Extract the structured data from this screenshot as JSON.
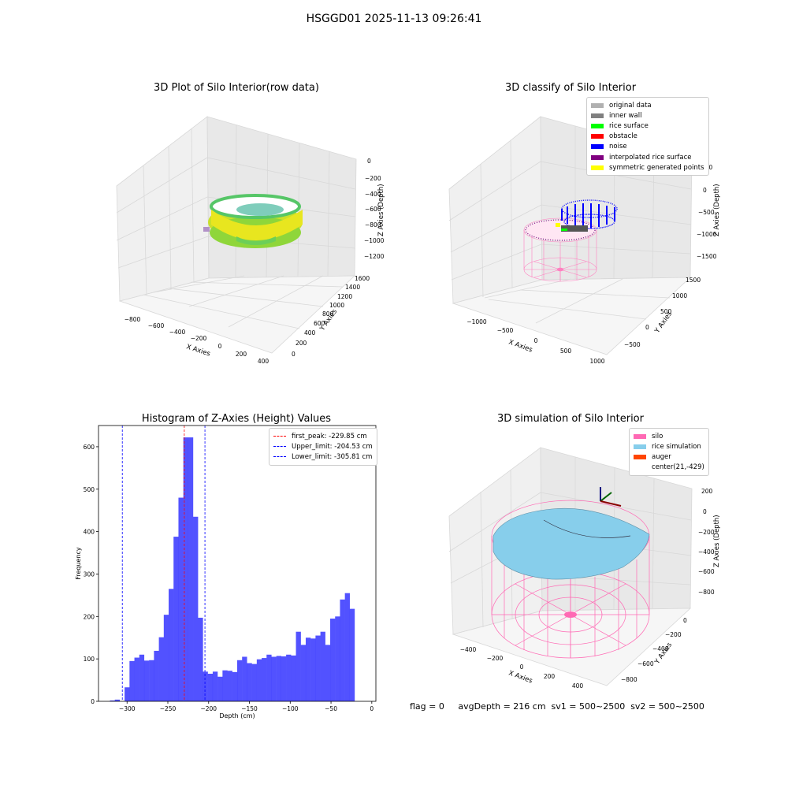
{
  "suptitle": "HSGGD01 2025-11-13 09:26:41",
  "status_text": "flag = 0     avgDepth = 216 cm  sv1 = 500~2500  sv2 = 500~2500",
  "chart_data": [
    {
      "type": "scatter",
      "title": "3D Plot of Silo Interior(row data)",
      "xlabel": "X Axies",
      "ylabel": "Y Axies",
      "zlabel": "Z Axies (Depth)",
      "xticks": [
        "−800",
        "−600",
        "−400",
        "−200",
        "0",
        "200",
        "400"
      ],
      "yticks": [
        "0",
        "200",
        "400",
        "600",
        "800",
        "1000",
        "1200",
        "1400",
        "1600"
      ],
      "zticks": [
        "0",
        "−200",
        "−400",
        "−600",
        "−800",
        "−1000",
        "−1200"
      ],
      "colormap": [
        "#b5de2b",
        "#f3e51e",
        "#35b779",
        "#26828e"
      ]
    },
    {
      "type": "scatter",
      "title": "3D classify of Silo Interior",
      "xlabel": "X Axies",
      "ylabel": "Y Axies",
      "zlabel": "Z Axies (Depth)",
      "xticks": [
        "−1000",
        "−500",
        "0",
        "500",
        "1000"
      ],
      "yticks": [
        "−500",
        "0",
        "500",
        "1000",
        "1500"
      ],
      "zticks": [
        "500",
        "0",
        "−500",
        "−1000",
        "−1500"
      ],
      "legend": [
        {
          "label": "original data",
          "color": "#b0b0b0"
        },
        {
          "label": "inner wall",
          "color": "#808080"
        },
        {
          "label": "rice surface",
          "color": "#00ff00"
        },
        {
          "label": "obstacle",
          "color": "#ff0000"
        },
        {
          "label": "noise",
          "color": "#0000ff"
        },
        {
          "label": "interpolated rice surface",
          "color": "#800080"
        },
        {
          "label": "symmetric generated points",
          "color": "#ffff00"
        }
      ]
    },
    {
      "type": "bar",
      "title": "Histogram of Z-Axies (Height) Values",
      "xlabel": "Depth (cm)",
      "ylabel": "Frequency",
      "xlim": [
        -335,
        5
      ],
      "ylim": [
        0,
        650
      ],
      "xticks": [
        -300,
        -250,
        -200,
        -150,
        -100,
        -50,
        0
      ],
      "yticks": [
        0,
        100,
        200,
        300,
        400,
        500,
        600
      ],
      "bin_width": 6.1,
      "bins_start": [
        -321.0,
        -315.0,
        -309.0,
        -303.0,
        -297.0,
        -291.0,
        -285.0,
        -279.0,
        -273.0,
        -267.0,
        -261.0,
        -255.0,
        -249.0,
        -243.0,
        -237.0,
        -231.0,
        -225.0,
        -219.0,
        -213.0,
        -207.0,
        -201.0,
        -195.0,
        -189.0,
        -183.0,
        -177.0,
        -171.0,
        -165.0,
        -159.0,
        -153.0,
        -147.0,
        -141.0,
        -135.0,
        -129.0,
        -123.0,
        -117.0,
        -111.0,
        -105.0,
        -99.0,
        -93.0,
        -87.0,
        -81.0,
        -75.0,
        -69.0,
        -63.0,
        -57.0,
        -51.0,
        -45.0,
        -39.0,
        -33.0,
        -27.0,
        -21.0,
        -15.0
      ],
      "values": [
        2,
        4,
        0,
        33,
        95,
        103,
        110,
        96,
        97,
        119,
        151,
        204,
        265,
        388,
        480,
        622,
        622,
        435,
        197,
        70,
        65,
        70,
        58,
        73,
        72,
        69,
        97,
        105,
        90,
        88,
        99,
        102,
        110,
        105,
        107,
        106,
        110,
        108,
        164,
        133,
        150,
        148,
        155,
        164,
        133,
        195,
        200,
        240,
        255,
        218,
        0,
        0
      ],
      "lines": [
        {
          "name": "first_peak: -229.85 cm",
          "x": -229.85,
          "color": "#ff0000"
        },
        {
          "name": "Upper_limit: -204.53 cm",
          "x": -204.53,
          "color": "#0000ff"
        },
        {
          "name": "Lower_limit: -305.81 cm",
          "x": -305.81,
          "color": "#0000ff"
        }
      ]
    },
    {
      "type": "scatter",
      "title": "3D simulation of Silo Interior",
      "xlabel": "X Axies",
      "ylabel": "Y Axies",
      "zlabel": "Z Axies (Depth)",
      "xticks": [
        "−400",
        "−200",
        "0",
        "200",
        "400"
      ],
      "yticks": [
        "0",
        "−200",
        "−400",
        "−600",
        "−800"
      ],
      "zticks": [
        "200",
        "0",
        "−200",
        "−400",
        "−600",
        "−800"
      ],
      "legend": [
        {
          "label": "silo",
          "color": "#ff69b4"
        },
        {
          "label": "rice simulation",
          "color": "#87ceeb"
        },
        {
          "label": "auger",
          "color": "#ff4500"
        },
        {
          "label": "center(21,-429)",
          "color": ""
        }
      ]
    }
  ]
}
